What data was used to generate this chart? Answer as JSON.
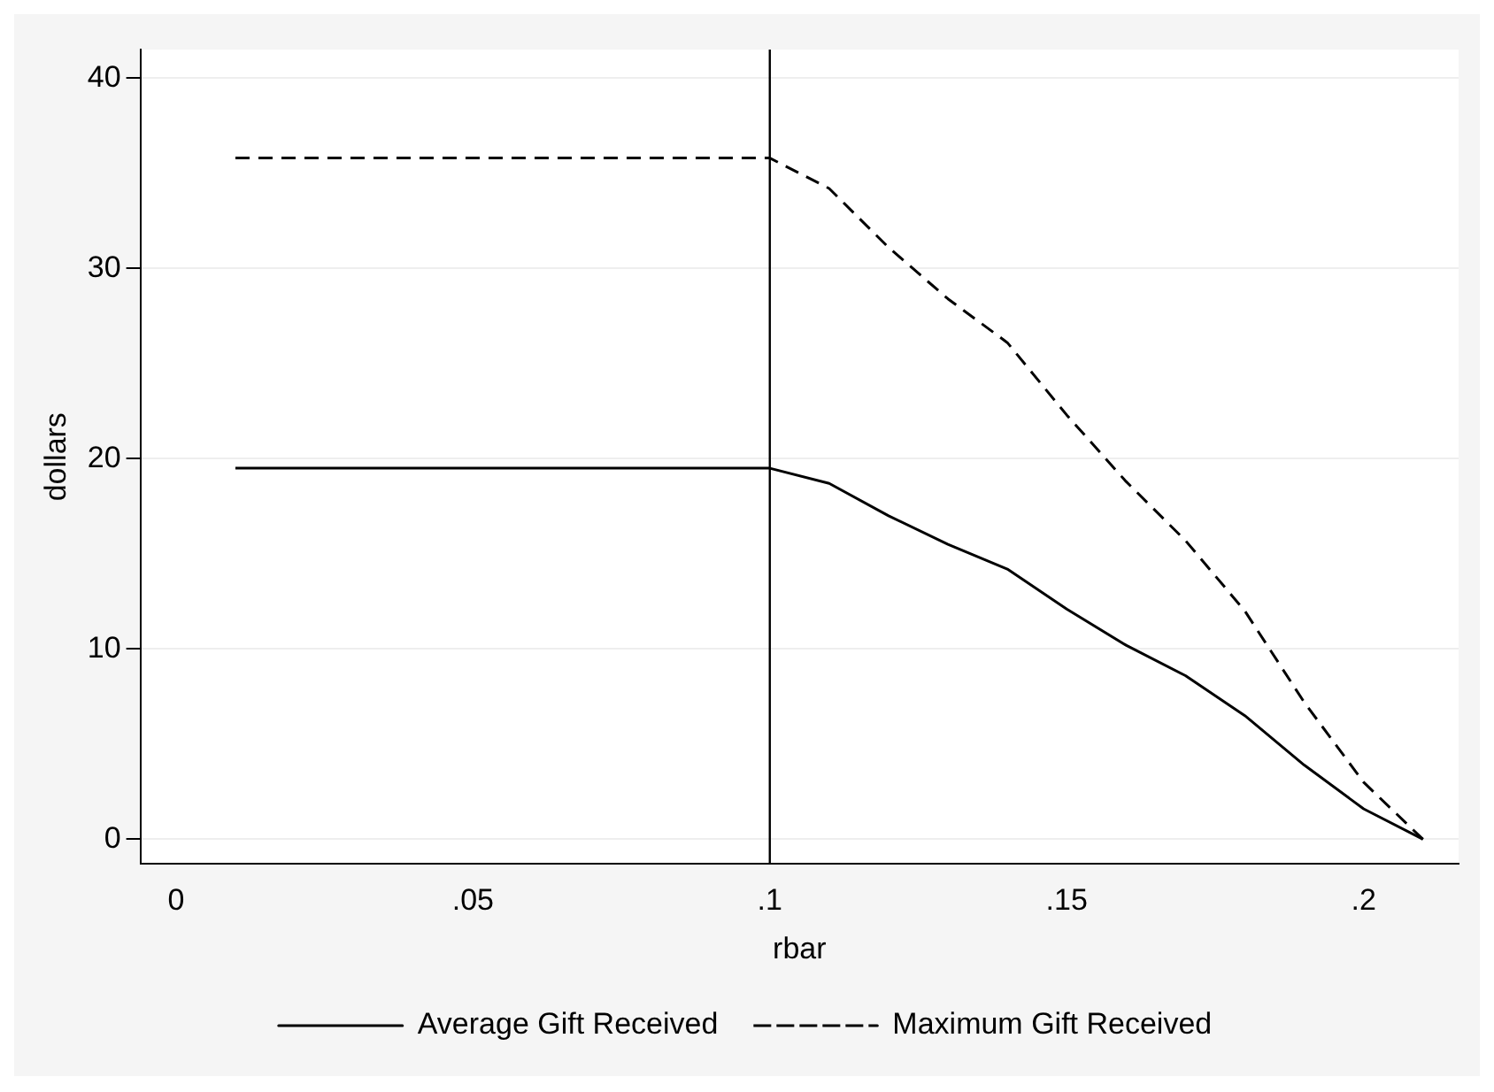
{
  "chart_data": {
    "type": "line",
    "xlabel": "rbar",
    "ylabel": "dollars",
    "xlim": [
      -0.006,
      0.216
    ],
    "xticks": [
      0,
      {
        "value": 0.05,
        "label": ".05"
      },
      {
        "value": 0.1,
        "label": ".1"
      },
      {
        "value": 0.15,
        "label": ".15"
      },
      {
        "value": 0.2,
        "label": ".2"
      }
    ],
    "ylim": [
      -1.3,
      41.5
    ],
    "yticks": [
      0,
      10,
      20,
      30,
      40
    ],
    "grid": "y",
    "legend": "bottom",
    "ref_lines": [
      {
        "axis": "x",
        "value": 0.1,
        "color": "#000000"
      }
    ],
    "series": [
      {
        "name": "Average Gift Received",
        "color": "#000000",
        "line_style": "solid",
        "x": [
          0.01,
          0.1,
          0.11,
          0.12,
          0.13,
          0.14,
          0.15,
          0.16,
          0.17,
          0.18,
          0.19,
          0.2,
          0.21
        ],
        "values": [
          19.5,
          19.5,
          18.7,
          17,
          15.5,
          14.2,
          12.1,
          10.2,
          8.6,
          6.5,
          3.9,
          1.6,
          0
        ]
      },
      {
        "name": "Maximum Gift Received",
        "color": "#000000",
        "line_style": "dashed",
        "x": [
          0.01,
          0.1,
          0.11,
          0.12,
          0.13,
          0.14,
          0.15,
          0.16,
          0.17,
          0.18,
          0.19,
          0.2,
          0.21
        ],
        "values": [
          35.8,
          35.8,
          34.2,
          31.1,
          28.4,
          26.1,
          22.3,
          18.8,
          15.7,
          12,
          7.2,
          3,
          0
        ]
      }
    ]
  }
}
